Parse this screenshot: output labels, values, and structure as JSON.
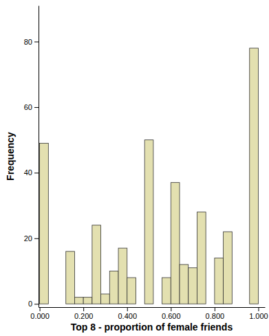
{
  "chart_data": {
    "type": "histogram",
    "x_label": "Top 8 - proportion of female friends",
    "y_label": "Frequency",
    "bins": [
      0,
      0.04,
      0.08,
      0.12,
      0.16,
      0.2,
      0.24,
      0.28,
      0.32,
      0.36,
      0.4,
      0.44,
      0.48,
      0.52,
      0.56,
      0.6,
      0.64,
      0.68,
      0.72,
      0.76,
      0.8,
      0.84,
      0.88,
      0.92,
      0.96,
      1
    ],
    "values": [
      49,
      0,
      0,
      16,
      2,
      2,
      24,
      3,
      10,
      17,
      8,
      0,
      50,
      0,
      8,
      37,
      12,
      11,
      28,
      0,
      14,
      22,
      0,
      0,
      78
    ],
    "color": "#e3e0b0",
    "xlim": [
      -0.005,
      1.03
    ],
    "xticks": [
      {
        "value": 0,
        "label": "0.000"
      },
      {
        "value": 0.2,
        "label": "0.200"
      },
      {
        "value": 0.4,
        "label": "0.400"
      },
      {
        "value": 0.6,
        "label": "0.600"
      },
      {
        "value": 0.8,
        "label": "0.800"
      },
      {
        "value": 1,
        "label": "1.000"
      }
    ],
    "ylim": [
      -1,
      91
    ],
    "yticks": [
      0,
      20,
      40,
      60,
      80
    ],
    "grid": false
  }
}
